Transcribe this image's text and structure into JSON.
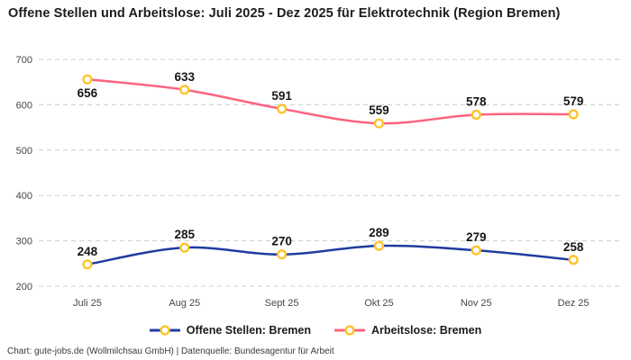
{
  "header": {
    "title": "Offene Stellen und Arbeitslose: Juli 2025 - Dez 2025 für Elektrotechnik (Region Bremen)"
  },
  "footer": {
    "credit": "Chart: gute-jobs.de (Wollmilchsau GmbH) | Datenquelle: Bundesagentur für Arbeit"
  },
  "colors": {
    "grid": "#cbcbcb",
    "tick_text": "#474747",
    "value_label": "#161616",
    "marker_fill": "#ffffff",
    "marker_stroke": "#fcc42c"
  },
  "chart_data": {
    "type": "line",
    "title": "Offene Stellen und Arbeitslose: Juli 2025 - Dez 2025 für Elektrotechnik (Region Bremen)",
    "categories": [
      "Juli 25",
      "Aug 25",
      "Sept 25",
      "Okt 25",
      "Nov 25",
      "Dez 25"
    ],
    "series": [
      {
        "name": "Offene Stellen: Bremen",
        "color": "#1f3ca0",
        "values": [
          248,
          285,
          270,
          289,
          279,
          258
        ],
        "label_positions": [
          "above",
          "above",
          "above",
          "above",
          "above",
          "above"
        ]
      },
      {
        "name": "Arbeitslose: Bremen",
        "color": "#fa647f",
        "values": [
          656,
          633,
          591,
          559,
          578,
          579
        ],
        "label_positions": [
          "below",
          "above",
          "above",
          "above",
          "above",
          "above"
        ]
      }
    ],
    "ylim": [
      200,
      700
    ],
    "yticks": [
      200,
      300,
      400,
      500,
      600,
      700
    ],
    "grid": true,
    "legend_position": "bottom",
    "xlabel": "",
    "ylabel": ""
  }
}
